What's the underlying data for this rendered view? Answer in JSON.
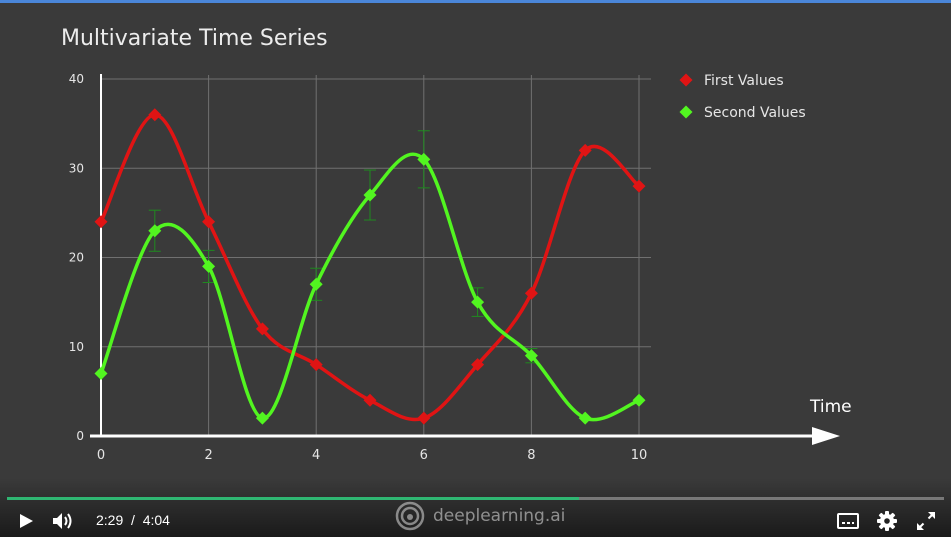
{
  "slide": {
    "title": "Multivariate Time Series"
  },
  "chart_data": {
    "type": "line",
    "title": "Multivariate Time Series",
    "xlabel": "Time",
    "ylabel": "",
    "xlim": [
      0,
      10
    ],
    "ylim": [
      0,
      40
    ],
    "x_ticks": [
      "0",
      "2",
      "4",
      "6",
      "8",
      "10"
    ],
    "y_ticks": [
      "0",
      "10",
      "20",
      "30",
      "40"
    ],
    "grid": true,
    "legend_position": "top-right",
    "x": [
      0,
      1,
      2,
      3,
      4,
      5,
      6,
      7,
      8,
      9,
      10
    ],
    "series": [
      {
        "name": "First Values",
        "color": "#e01414",
        "values": [
          24,
          36,
          24,
          12,
          8,
          4,
          2,
          8,
          16,
          32,
          28
        ]
      },
      {
        "name": "Second Values",
        "color": "#52f520",
        "values": [
          7,
          23,
          19,
          2,
          17,
          27,
          31,
          15,
          9,
          2,
          4
        ],
        "error_bars": [
          null,
          2.3,
          1.8,
          null,
          1.8,
          2.8,
          3.2,
          1.6,
          0.8,
          null,
          null
        ]
      }
    ]
  },
  "player": {
    "current_time": "2:29",
    "separator": "/",
    "duration": "4:04",
    "progress": 0.61,
    "brand": "deeplearning.ai",
    "progress_color": "#2fb672",
    "play_icon": "play-icon",
    "volume_icon": "volume-icon",
    "captions_icon": "captions-icon",
    "settings_icon": "gear-icon",
    "fullscreen_icon": "fullscreen-icon"
  }
}
